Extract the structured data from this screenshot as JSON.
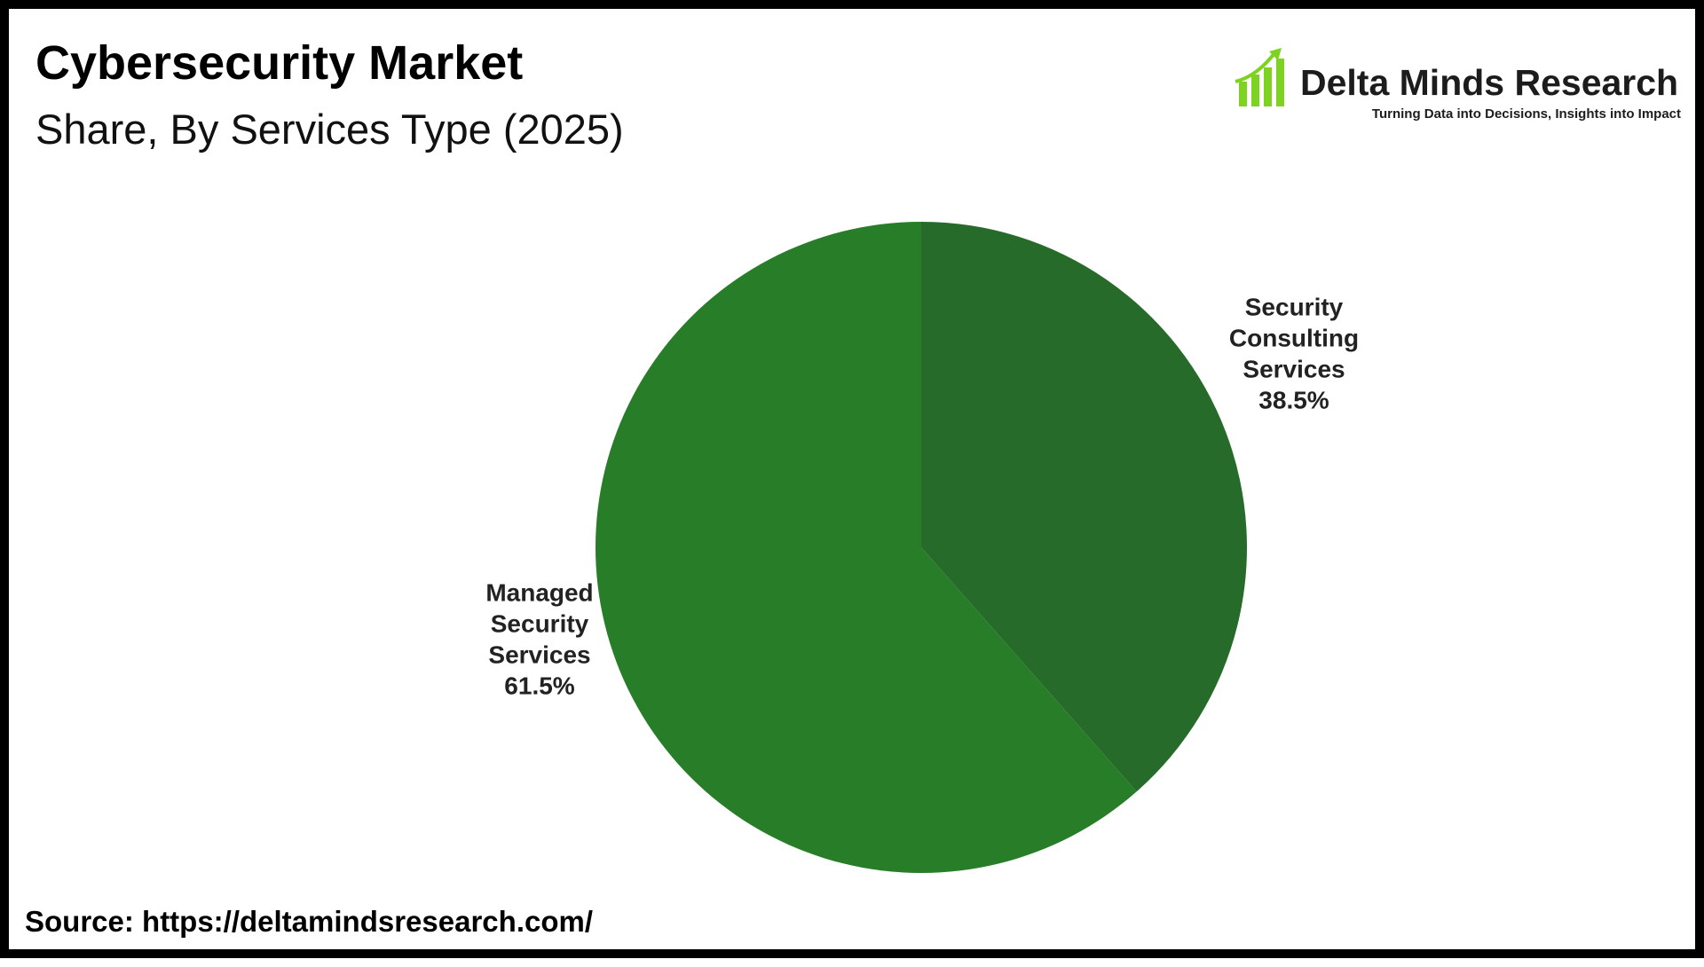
{
  "title": "Cybersecurity Market",
  "subtitle": "Share, By Services Type (2025)",
  "brand": {
    "name": "Delta Minds Research",
    "tagline": "Turning Data into Decisions, Insights into Impact",
    "logo_icon": "bar-chart-growth-arrow",
    "logo_color": "#7ed321"
  },
  "source": "Source: https://deltamindsresearch.com/",
  "chart_data": {
    "type": "pie",
    "title": "Cybersecurity Market",
    "subtitle": "Share, By Services Type (2025)",
    "unit": "%",
    "slices": [
      {
        "label_lines": [
          "Security",
          "Consulting",
          "Services"
        ],
        "value": 38.5,
        "value_label": "38.5%",
        "color": "#276b2a"
      },
      {
        "label_lines": [
          "Managed",
          "Security",
          "Services"
        ],
        "value": 61.5,
        "value_label": "61.5%",
        "color": "#287e28"
      }
    ],
    "start_angle": "12 o'clock",
    "direction": "clockwise",
    "legend": "none"
  }
}
